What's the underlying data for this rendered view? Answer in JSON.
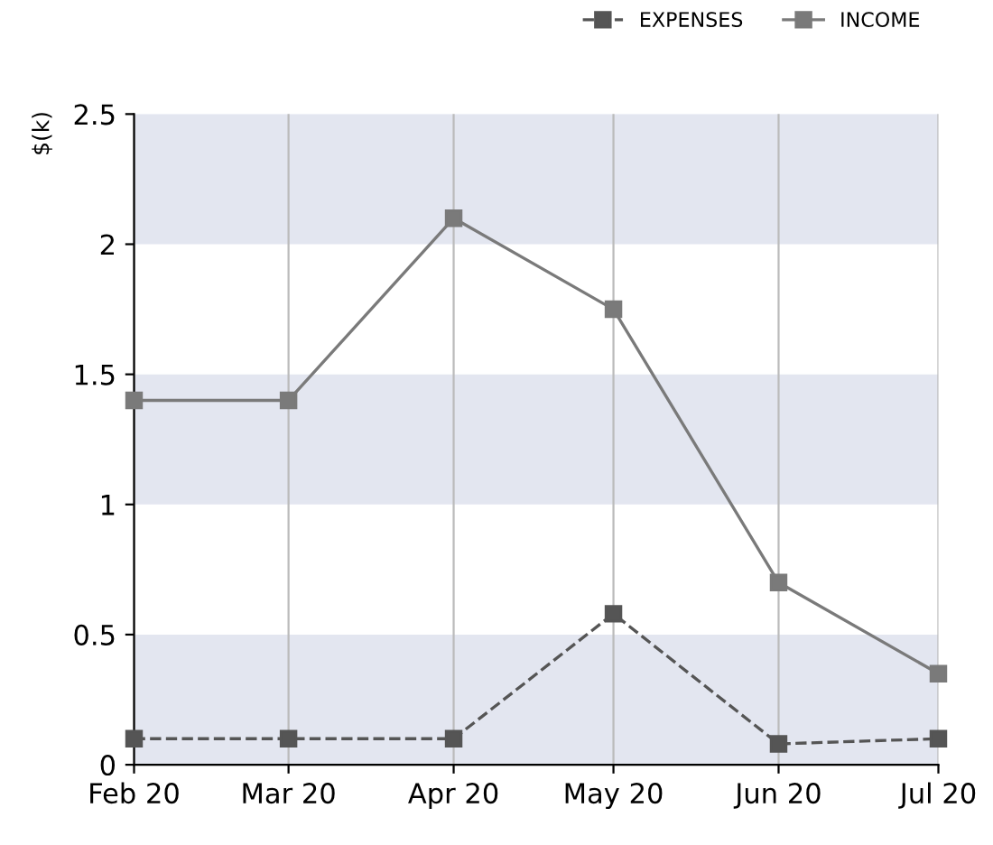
{
  "chart_data": {
    "type": "line",
    "ylabel": "$(k)",
    "x": [
      "2020-02-01",
      "2020-03-01",
      "2020-04-01",
      "2020-05-01",
      "2020-06-01",
      "2020-07-01"
    ],
    "xlim": [
      "2020-02-01",
      "2020-07-01"
    ],
    "xticks": [
      {
        "value": "2020-02-01",
        "label": "Feb 20"
      },
      {
        "value": "2020-03-01",
        "label": "Mar 20"
      },
      {
        "value": "2020-04-01",
        "label": "Apr 20"
      },
      {
        "value": "2020-05-01",
        "label": "May 20"
      },
      {
        "value": "2020-06-01",
        "label": "Jun 20"
      },
      {
        "value": "2020-07-01",
        "label": "Jul 20"
      }
    ],
    "ylim": [
      0,
      2.5
    ],
    "yticks": [
      0,
      0.5,
      1,
      1.5,
      2,
      2.5
    ],
    "series": [
      {
        "name": "EXPENSES",
        "color": "#555555",
        "line_style": "dashed",
        "values": [
          0.1,
          0.1,
          0.1,
          0.58,
          0.08,
          0.1
        ]
      },
      {
        "name": "INCOME",
        "color": "#7a7a7a",
        "line_style": "solid",
        "values": [
          1.4,
          1.4,
          2.1,
          1.75,
          0.7,
          0.35
        ]
      }
    ],
    "bands": [
      {
        "axis": "y",
        "from": 0,
        "to": 0.5,
        "color": "#e3e6f0"
      },
      {
        "axis": "y",
        "from": 1,
        "to": 1.5,
        "color": "#e3e6f0"
      },
      {
        "axis": "y",
        "from": 2,
        "to": 2.5,
        "color": "#e3e6f0"
      }
    ],
    "grid": "x",
    "marker": "square",
    "legend": "top right"
  }
}
